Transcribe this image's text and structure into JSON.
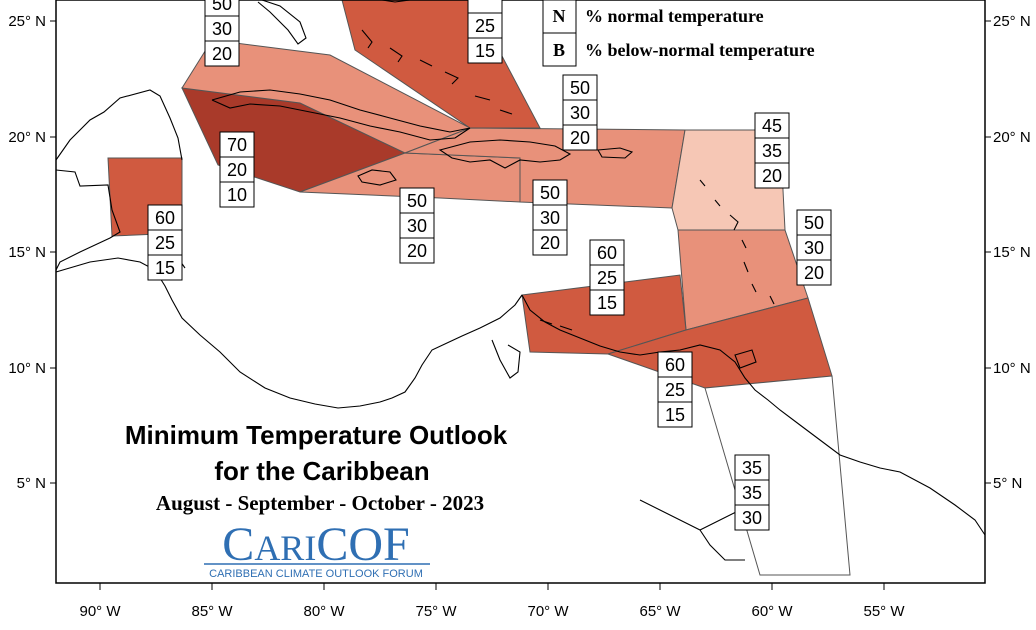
{
  "title_line1": "Minimum Temperature Outlook",
  "title_line2": "for the Caribbean",
  "period": "August - September - October - 2023",
  "logo": {
    "text": "CARICOF",
    "text_parts": [
      "C",
      "ARI",
      "COF"
    ],
    "subtitle": "CARIBBEAN CLIMATE OUTLOOK FORUM",
    "color": "#2f6fb3"
  },
  "legend": [
    {
      "letter": "N",
      "label": "% normal temperature"
    },
    {
      "letter": "B",
      "label": "% below-normal temperature"
    }
  ],
  "x_ticks": [
    "90° W",
    "85° W",
    "80° W",
    "75° W",
    "70° W",
    "65° W",
    "60° W",
    "55° W"
  ],
  "y_ticks": [
    "25° N",
    "20° N",
    "15° N",
    "10° N",
    "5° N"
  ],
  "colors": {
    "prob70": "#a93a2a",
    "prob60": "#d05a40",
    "prob50": "#e8917a",
    "prob45": "#f6c7b5",
    "none": "#ffffff"
  },
  "regions": [
    {
      "name": "belize",
      "above": "60",
      "normal": "25",
      "below": "15"
    },
    {
      "name": "yucatan-channel",
      "above": "70",
      "normal": "20",
      "below": "10"
    },
    {
      "name": "cuba",
      "above": "50",
      "normal": "30",
      "below": "20"
    },
    {
      "name": "bahamas",
      "above": "",
      "normal": "25",
      "below": "15"
    },
    {
      "name": "jamaica",
      "above": "50",
      "normal": "30",
      "below": "20"
    },
    {
      "name": "hispaniola-puerto-rico",
      "above": "50",
      "normal": "30",
      "below": "20"
    },
    {
      "name": "northeast-atlantic",
      "above": "50",
      "normal": "30",
      "below": "20"
    },
    {
      "name": "northern-lesser-antilles",
      "above": "45",
      "normal": "35",
      "below": "20"
    },
    {
      "name": "windward-islands",
      "above": "50",
      "normal": "30",
      "below": "20"
    },
    {
      "name": "abc-islands",
      "above": "60",
      "normal": "25",
      "below": "15"
    },
    {
      "name": "trinidad-tobago",
      "above": "60",
      "normal": "25",
      "below": "15"
    },
    {
      "name": "guianas",
      "above": "35",
      "normal": "35",
      "below": "30"
    }
  ]
}
